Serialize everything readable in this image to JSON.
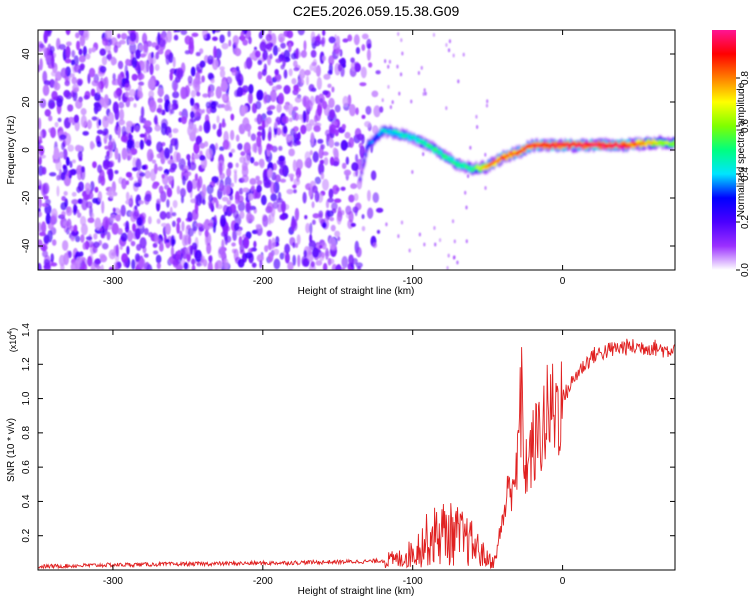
{
  "title": "C2E5.2026.059.15.38.G09",
  "chart_data": [
    {
      "type": "heatmap",
      "xlabel": "Height of straight line (km)",
      "ylabel": "Frequency (Hz)",
      "xlim": [
        -350,
        75
      ],
      "ylim": [
        -50,
        50
      ],
      "x_ticks": [
        -300,
        -200,
        -100,
        0
      ],
      "x_tick_labels": [
        "-300",
        "-200",
        "-100",
        "0"
      ],
      "y_ticks": [
        -40,
        -20,
        0,
        20,
        40
      ],
      "y_tick_labels": [
        "-40",
        "-20",
        "0",
        "20",
        "40"
      ],
      "colorbar": {
        "label": "Normalized spectral amplitude",
        "range": [
          0,
          1
        ],
        "ticks": [
          0.0,
          0.2,
          0.4,
          0.6,
          0.8
        ],
        "tick_labels": [
          "0.0",
          "0.2",
          "0.4",
          "0.6",
          "0.8"
        ],
        "colormap": [
          "#ffffff",
          "#9b30ff",
          "#4b00ff",
          "#0000ff",
          "#00e5ff",
          "#00ff7f",
          "#7fff00",
          "#ffff00",
          "#ff7f00",
          "#ff0000",
          "#ff1493"
        ]
      },
      "noise_region": {
        "x_range": [
          -350,
          -120
        ],
        "freq_range": [
          -50,
          50
        ],
        "amplitude_range": [
          0.05,
          0.22
        ]
      },
      "signal_trace": [
        {
          "x": -135,
          "f": -12,
          "amp": 0.15
        },
        {
          "x": -130,
          "f": 2,
          "amp": 0.3
        },
        {
          "x": -120,
          "f": 8,
          "amp": 0.4
        },
        {
          "x": -110,
          "f": 7,
          "amp": 0.45
        },
        {
          "x": -100,
          "f": 5,
          "amp": 0.45
        },
        {
          "x": -90,
          "f": 2,
          "amp": 0.5
        },
        {
          "x": -80,
          "f": -2,
          "amp": 0.5
        },
        {
          "x": -70,
          "f": -6,
          "amp": 0.5
        },
        {
          "x": -60,
          "f": -8,
          "amp": 0.5
        },
        {
          "x": -50,
          "f": -7,
          "amp": 0.8
        },
        {
          "x": -40,
          "f": -3,
          "amp": 0.85
        },
        {
          "x": -30,
          "f": -1,
          "amp": 0.85
        },
        {
          "x": -20,
          "f": 2,
          "amp": 0.9
        },
        {
          "x": -10,
          "f": 2,
          "amp": 0.92
        },
        {
          "x": 0,
          "f": 2,
          "amp": 0.92
        },
        {
          "x": 20,
          "f": 2,
          "amp": 0.95
        },
        {
          "x": 40,
          "f": 2,
          "amp": 0.95
        },
        {
          "x": 60,
          "f": 3,
          "amp": 0.7
        },
        {
          "x": 75,
          "f": 3,
          "amp": 0.6
        }
      ]
    },
    {
      "type": "line",
      "xlabel": "Height of straight line (km)",
      "ylabel": "SNR (10 * v/v)",
      "y_multiplier_label": "(x10",
      "y_multiplier_exp": "4",
      "xlim": [
        -350,
        75
      ],
      "ylim": [
        0,
        1.4
      ],
      "x_ticks": [
        -300,
        -200,
        -100,
        0
      ],
      "x_tick_labels": [
        "-300",
        "-200",
        "-100",
        "0"
      ],
      "y_ticks": [
        0.2,
        0.4,
        0.6,
        0.8,
        1.0,
        1.2,
        1.4
      ],
      "y_tick_labels": [
        "0.2",
        "0.4",
        "0.6",
        "0.8",
        "1.0",
        "1.2",
        "1.4"
      ],
      "series": [
        {
          "name": "SNR",
          "color": "#e02020",
          "x": [
            -350,
            -300,
            -200,
            -130,
            -110,
            -100,
            -90,
            -80,
            -70,
            -60,
            -50,
            -45,
            -40,
            -35,
            -30,
            -28,
            -25,
            -20,
            -15,
            -10,
            -5,
            0,
            10,
            20,
            30,
            40,
            50,
            60,
            70,
            75
          ],
          "y": [
            0.02,
            0.03,
            0.04,
            0.05,
            0.06,
            0.1,
            0.18,
            0.22,
            0.2,
            0.15,
            0.06,
            0.05,
            0.3,
            0.5,
            0.6,
            0.95,
            0.6,
            0.7,
            0.8,
            0.9,
            0.95,
            1.0,
            1.15,
            1.25,
            1.28,
            1.3,
            1.3,
            1.3,
            1.28,
            1.3
          ]
        }
      ]
    }
  ]
}
